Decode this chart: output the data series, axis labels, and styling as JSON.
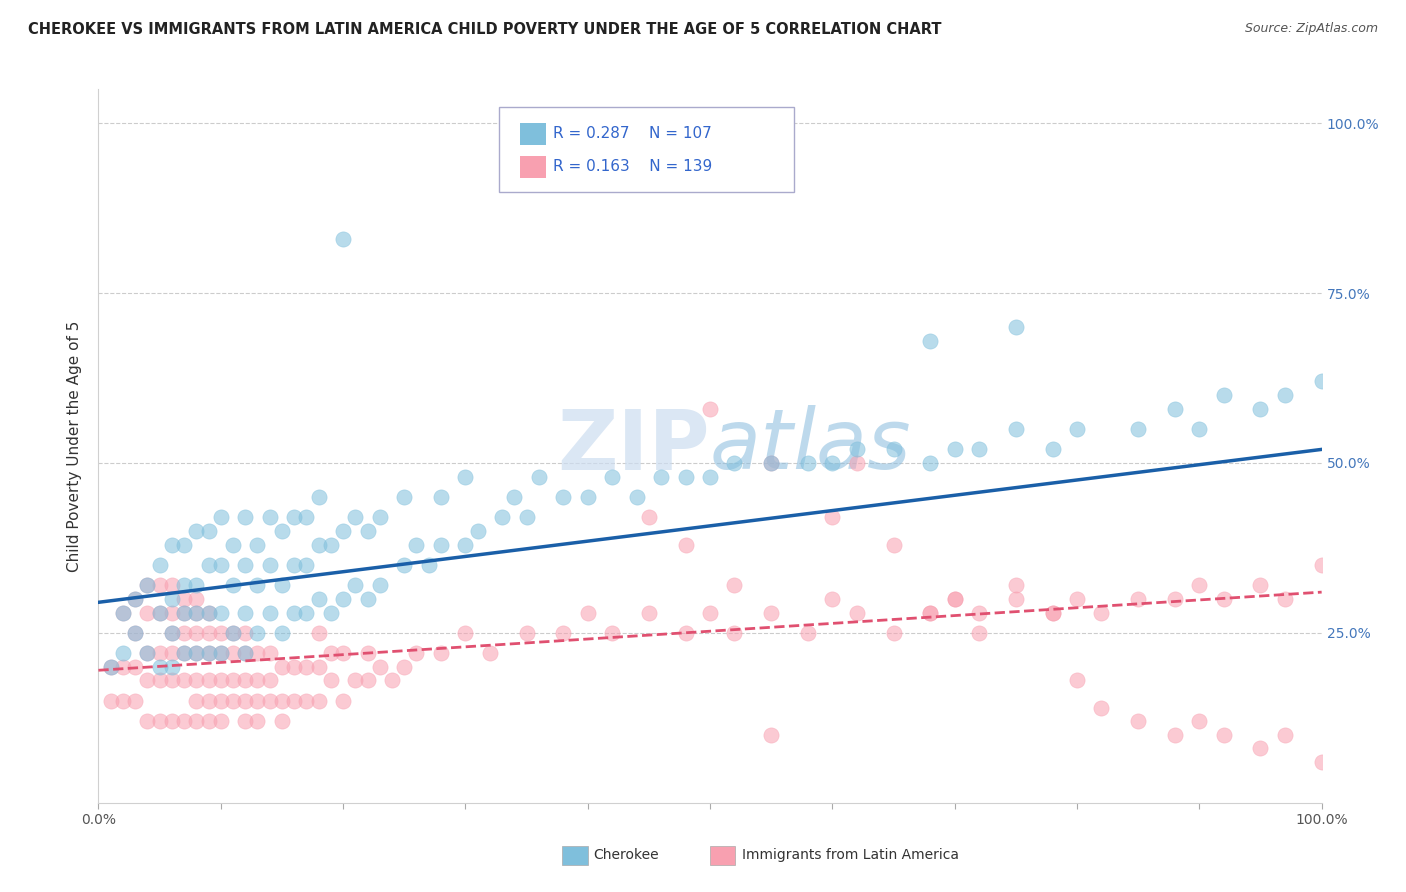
{
  "title": "CHEROKEE VS IMMIGRANTS FROM LATIN AMERICA CHILD POVERTY UNDER THE AGE OF 5 CORRELATION CHART",
  "source": "Source: ZipAtlas.com",
  "ylabel": "Child Poverty Under the Age of 5",
  "watermark": "ZIPatlas",
  "xlim": [
    0.0,
    1.0
  ],
  "ylim": [
    0.0,
    1.05
  ],
  "yticks": [
    0.25,
    0.5,
    0.75,
    1.0
  ],
  "ytick_labels": [
    "25.0%",
    "50.0%",
    "75.0%",
    "100.0%"
  ],
  "xtick_labels": [
    "0.0%",
    "100.0%"
  ],
  "legend1_R": "0.287",
  "legend1_N": "107",
  "legend2_R": "0.163",
  "legend2_N": "139",
  "blue_color": "#7fbfdc",
  "pink_color": "#f8a0b0",
  "blue_line_color": "#1a5fa8",
  "pink_line_color": "#e05070",
  "background_color": "#ffffff",
  "grid_color": "#cccccc",
  "series1_name": "Cherokee",
  "series2_name": "Immigrants from Latin America",
  "blue_intercept": 0.295,
  "blue_slope": 0.225,
  "pink_intercept": 0.195,
  "pink_slope": 0.115,
  "blue_x": [
    0.01,
    0.02,
    0.02,
    0.03,
    0.03,
    0.04,
    0.04,
    0.05,
    0.05,
    0.05,
    0.06,
    0.06,
    0.06,
    0.06,
    0.07,
    0.07,
    0.07,
    0.07,
    0.08,
    0.08,
    0.08,
    0.08,
    0.09,
    0.09,
    0.09,
    0.09,
    0.1,
    0.1,
    0.1,
    0.1,
    0.11,
    0.11,
    0.11,
    0.12,
    0.12,
    0.12,
    0.12,
    0.13,
    0.13,
    0.13,
    0.14,
    0.14,
    0.14,
    0.15,
    0.15,
    0.15,
    0.16,
    0.16,
    0.16,
    0.17,
    0.17,
    0.17,
    0.18,
    0.18,
    0.18,
    0.19,
    0.19,
    0.2,
    0.2,
    0.21,
    0.21,
    0.22,
    0.22,
    0.23,
    0.23,
    0.25,
    0.25,
    0.26,
    0.27,
    0.28,
    0.28,
    0.3,
    0.3,
    0.31,
    0.33,
    0.34,
    0.35,
    0.36,
    0.38,
    0.4,
    0.42,
    0.44,
    0.46,
    0.48,
    0.5,
    0.52,
    0.55,
    0.58,
    0.6,
    0.62,
    0.65,
    0.68,
    0.7,
    0.72,
    0.75,
    0.78,
    0.8,
    0.85,
    0.88,
    0.9,
    0.92,
    0.95,
    0.97,
    1.0,
    0.68,
    0.75,
    0.2
  ],
  "blue_y": [
    0.2,
    0.22,
    0.28,
    0.25,
    0.3,
    0.22,
    0.32,
    0.2,
    0.28,
    0.35,
    0.2,
    0.25,
    0.3,
    0.38,
    0.22,
    0.28,
    0.32,
    0.38,
    0.22,
    0.28,
    0.32,
    0.4,
    0.22,
    0.28,
    0.35,
    0.4,
    0.22,
    0.28,
    0.35,
    0.42,
    0.25,
    0.32,
    0.38,
    0.22,
    0.28,
    0.35,
    0.42,
    0.25,
    0.32,
    0.38,
    0.28,
    0.35,
    0.42,
    0.25,
    0.32,
    0.4,
    0.28,
    0.35,
    0.42,
    0.28,
    0.35,
    0.42,
    0.3,
    0.38,
    0.45,
    0.28,
    0.38,
    0.3,
    0.4,
    0.32,
    0.42,
    0.3,
    0.4,
    0.32,
    0.42,
    0.35,
    0.45,
    0.38,
    0.35,
    0.38,
    0.45,
    0.38,
    0.48,
    0.4,
    0.42,
    0.45,
    0.42,
    0.48,
    0.45,
    0.45,
    0.48,
    0.45,
    0.48,
    0.48,
    0.48,
    0.5,
    0.5,
    0.5,
    0.5,
    0.52,
    0.52,
    0.5,
    0.52,
    0.52,
    0.55,
    0.52,
    0.55,
    0.55,
    0.58,
    0.55,
    0.6,
    0.58,
    0.6,
    0.62,
    0.68,
    0.7,
    0.83
  ],
  "pink_x": [
    0.01,
    0.01,
    0.02,
    0.02,
    0.02,
    0.03,
    0.03,
    0.03,
    0.03,
    0.04,
    0.04,
    0.04,
    0.04,
    0.04,
    0.05,
    0.05,
    0.05,
    0.05,
    0.05,
    0.06,
    0.06,
    0.06,
    0.06,
    0.06,
    0.06,
    0.07,
    0.07,
    0.07,
    0.07,
    0.07,
    0.07,
    0.08,
    0.08,
    0.08,
    0.08,
    0.08,
    0.08,
    0.08,
    0.09,
    0.09,
    0.09,
    0.09,
    0.09,
    0.09,
    0.1,
    0.1,
    0.1,
    0.1,
    0.1,
    0.11,
    0.11,
    0.11,
    0.11,
    0.12,
    0.12,
    0.12,
    0.12,
    0.12,
    0.13,
    0.13,
    0.13,
    0.13,
    0.14,
    0.14,
    0.14,
    0.15,
    0.15,
    0.15,
    0.16,
    0.16,
    0.17,
    0.17,
    0.18,
    0.18,
    0.18,
    0.19,
    0.19,
    0.2,
    0.2,
    0.21,
    0.22,
    0.22,
    0.23,
    0.24,
    0.25,
    0.26,
    0.28,
    0.3,
    0.32,
    0.35,
    0.38,
    0.4,
    0.42,
    0.45,
    0.48,
    0.5,
    0.52,
    0.55,
    0.58,
    0.6,
    0.62,
    0.65,
    0.68,
    0.7,
    0.72,
    0.75,
    0.78,
    0.8,
    0.82,
    0.85,
    0.88,
    0.9,
    0.92,
    0.95,
    0.97,
    1.0,
    0.5,
    0.55,
    0.6,
    0.62,
    0.65,
    0.68,
    0.7,
    0.72,
    0.75,
    0.78,
    0.8,
    0.82,
    0.85,
    0.88,
    0.9,
    0.92,
    0.95,
    0.97,
    1.0,
    0.45,
    0.48,
    0.52,
    0.55
  ],
  "pink_y": [
    0.15,
    0.2,
    0.15,
    0.2,
    0.28,
    0.15,
    0.2,
    0.25,
    0.3,
    0.12,
    0.18,
    0.22,
    0.28,
    0.32,
    0.12,
    0.18,
    0.22,
    0.28,
    0.32,
    0.12,
    0.18,
    0.22,
    0.25,
    0.28,
    0.32,
    0.12,
    0.18,
    0.22,
    0.25,
    0.28,
    0.3,
    0.12,
    0.15,
    0.18,
    0.22,
    0.25,
    0.28,
    0.3,
    0.12,
    0.15,
    0.18,
    0.22,
    0.25,
    0.28,
    0.12,
    0.15,
    0.18,
    0.22,
    0.25,
    0.15,
    0.18,
    0.22,
    0.25,
    0.12,
    0.15,
    0.18,
    0.22,
    0.25,
    0.12,
    0.15,
    0.18,
    0.22,
    0.15,
    0.18,
    0.22,
    0.12,
    0.15,
    0.2,
    0.15,
    0.2,
    0.15,
    0.2,
    0.15,
    0.2,
    0.25,
    0.18,
    0.22,
    0.15,
    0.22,
    0.18,
    0.18,
    0.22,
    0.2,
    0.18,
    0.2,
    0.22,
    0.22,
    0.25,
    0.22,
    0.25,
    0.25,
    0.28,
    0.25,
    0.28,
    0.25,
    0.28,
    0.25,
    0.28,
    0.25,
    0.3,
    0.28,
    0.25,
    0.28,
    0.3,
    0.28,
    0.3,
    0.28,
    0.3,
    0.28,
    0.3,
    0.3,
    0.32,
    0.3,
    0.32,
    0.3,
    0.35,
    0.58,
    0.5,
    0.42,
    0.5,
    0.38,
    0.28,
    0.3,
    0.25,
    0.32,
    0.28,
    0.18,
    0.14,
    0.12,
    0.1,
    0.12,
    0.1,
    0.08,
    0.1,
    0.06,
    0.42,
    0.38,
    0.32,
    0.1
  ]
}
